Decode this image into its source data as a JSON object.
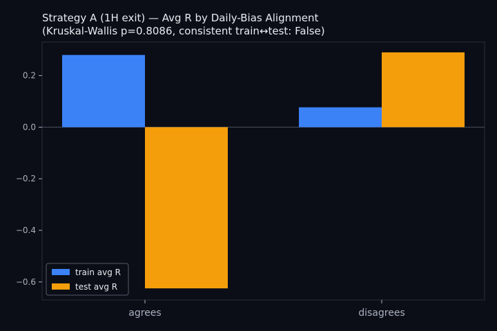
{
  "chart_data": {
    "type": "bar",
    "title": "Strategy A (1H exit) — Avg R by Daily-Bias Alignment",
    "subtitle": "(Kruskal-Wallis p=0.8086, consistent train↔test: False)",
    "categories": [
      "agrees",
      "disagrees"
    ],
    "series": [
      {
        "name": "train avg R",
        "values": [
          0.28,
          0.077
        ]
      },
      {
        "name": "test avg R",
        "values": [
          -0.625,
          0.29
        ]
      }
    ],
    "xlabel": "",
    "ylabel": "",
    "ylim": [
      -0.67,
      0.33
    ],
    "yticks": [
      0.2,
      0.0,
      -0.2,
      -0.4,
      -0.6
    ],
    "ytick_labels": [
      "0.2",
      "0.0",
      "−0.2",
      "−0.4",
      "−0.6"
    ],
    "grid": false,
    "zero_line": true,
    "legend": "lower-left",
    "colors": {
      "background": "#0b0e16",
      "axes_edge": "#2a2f3d",
      "zero_line": "#4a5060",
      "train": "#3b82f6",
      "test": "#f59e0b"
    }
  }
}
